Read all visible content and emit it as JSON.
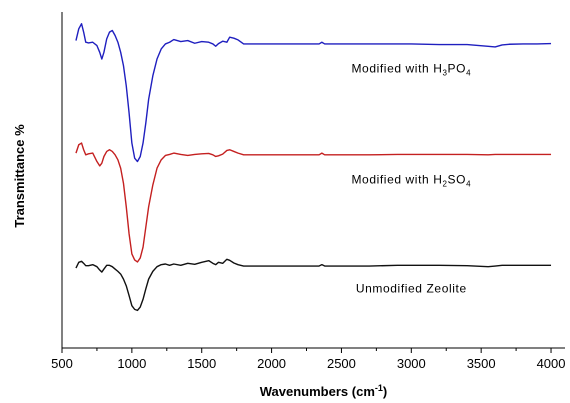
{
  "chart_data": {
    "type": "line",
    "title": "",
    "xlabel": "Wavenumbers (cm",
    "xlabel_sup": "-1",
    "xlabel_tail": ")",
    "ylabel": "Transmittance %",
    "xlim": [
      500,
      4100
    ],
    "ylim": [
      0,
      100
    ],
    "x_ticks": [
      500,
      1000,
      1500,
      2000,
      2500,
      3000,
      3500,
      4000
    ],
    "y_ticks_labeled": false,
    "grid": false,
    "series": [
      {
        "label_parts": [
          "Modified with H",
          "3",
          "PO",
          "4"
        ],
        "color": "#1f1fbf",
        "x": [
          600,
          620,
          640,
          655,
          670,
          690,
          720,
          750,
          770,
          785,
          800,
          820,
          840,
          860,
          880,
          900,
          920,
          940,
          960,
          980,
          1000,
          1020,
          1040,
          1060,
          1080,
          1100,
          1120,
          1150,
          1180,
          1210,
          1240,
          1270,
          1300,
          1350,
          1400,
          1450,
          1500,
          1550,
          1580,
          1600,
          1620,
          1650,
          1680,
          1700,
          1730,
          1760,
          1800,
          2000,
          2200,
          2340,
          2360,
          2380,
          2500,
          2700,
          2900,
          3000,
          3200,
          3400,
          3550,
          3600,
          3650,
          3700,
          3800,
          3900,
          4000
        ],
        "y": [
          91.5,
          95,
          96.5,
          94,
          91,
          90.8,
          91,
          90,
          88,
          86,
          88,
          92,
          94,
          94.5,
          93,
          91,
          88,
          84,
          78,
          70,
          61,
          56.5,
          55.5,
          57,
          61,
          67,
          74,
          81,
          86,
          89,
          90.5,
          91,
          91.8,
          91.2,
          91.5,
          90.7,
          91.2,
          91,
          90.5,
          89.8,
          90.6,
          91.3,
          91,
          92.5,
          92.2,
          91.7,
          90.5,
          90.5,
          90.5,
          90.5,
          91,
          90.5,
          90.5,
          90.5,
          90.5,
          90.5,
          90.3,
          90.3,
          89.8,
          89.6,
          90.2,
          90.4,
          90.5,
          90.5,
          90.6
        ]
      },
      {
        "label_parts": [
          "Modified with H",
          "2",
          "SO",
          "4"
        ],
        "color": "#c42020",
        "x": [
          600,
          620,
          640,
          655,
          670,
          690,
          720,
          750,
          770,
          785,
          800,
          820,
          840,
          860,
          880,
          900,
          920,
          940,
          960,
          980,
          1000,
          1020,
          1040,
          1060,
          1080,
          1100,
          1120,
          1150,
          1180,
          1210,
          1240,
          1270,
          1300,
          1350,
          1400,
          1450,
          1500,
          1550,
          1580,
          1600,
          1620,
          1650,
          1680,
          1700,
          1730,
          1760,
          1800,
          2000,
          2200,
          2340,
          2360,
          2380,
          2500,
          2700,
          2900,
          3000,
          3200,
          3400,
          3550,
          3600,
          3650,
          3700,
          3800,
          3900,
          4000
        ],
        "y": [
          58,
          60.5,
          61,
          59,
          57.5,
          57.8,
          58,
          55.5,
          54.2,
          55,
          57,
          58.5,
          59,
          58.5,
          57.5,
          56,
          53.5,
          49,
          42,
          34,
          28,
          26.2,
          25.6,
          26.8,
          30,
          36,
          42,
          48.5,
          53.5,
          56,
          57.3,
          57.6,
          58,
          57.6,
          57.3,
          57.6,
          57.8,
          57.9,
          57.5,
          57,
          57.2,
          57.7,
          58.8,
          59,
          58.5,
          58,
          57.5,
          57.5,
          57.5,
          57.5,
          58,
          57.5,
          57.5,
          57.5,
          57.6,
          57.6,
          57.6,
          57.6,
          57.5,
          57.6,
          57.6,
          57.6,
          57.6,
          57.6,
          57.6
        ]
      },
      {
        "label_parts": [
          "Unmodified Zeolite",
          "",
          "",
          ""
        ],
        "color": "#111111",
        "x": [
          600,
          620,
          640,
          655,
          670,
          690,
          720,
          750,
          770,
          785,
          800,
          820,
          840,
          860,
          880,
          900,
          920,
          940,
          960,
          980,
          1000,
          1020,
          1040,
          1060,
          1080,
          1100,
          1120,
          1150,
          1180,
          1210,
          1240,
          1270,
          1300,
          1350,
          1400,
          1450,
          1500,
          1550,
          1580,
          1600,
          1620,
          1650,
          1680,
          1700,
          1730,
          1760,
          1800,
          2000,
          2200,
          2340,
          2360,
          2380,
          2500,
          2700,
          2900,
          3000,
          3200,
          3400,
          3550,
          3600,
          3650,
          3700,
          3800,
          3900,
          4000
        ],
        "y": [
          23.8,
          25.5,
          25.8,
          25.2,
          24.5,
          24.5,
          24.8,
          24.2,
          23.2,
          22.6,
          23.5,
          24.6,
          24.6,
          24.2,
          23.5,
          22.8,
          22,
          20.5,
          18.5,
          15.6,
          12.6,
          11.5,
          11.2,
          12.2,
          14.5,
          17.6,
          20.5,
          22.8,
          24.2,
          24.8,
          25,
          24.6,
          25,
          24.6,
          25.2,
          24.9,
          25.5,
          26,
          25.2,
          24.8,
          25.5,
          25.2,
          26.4,
          26.1,
          25.3,
          24.8,
          24.4,
          24.4,
          24.4,
          24.4,
          24.8,
          24.4,
          24.4,
          24.4,
          24.6,
          24.6,
          24.6,
          24.5,
          24.2,
          24.4,
          24.6,
          24.6,
          24.6,
          24.6,
          24.6
        ]
      }
    ]
  }
}
